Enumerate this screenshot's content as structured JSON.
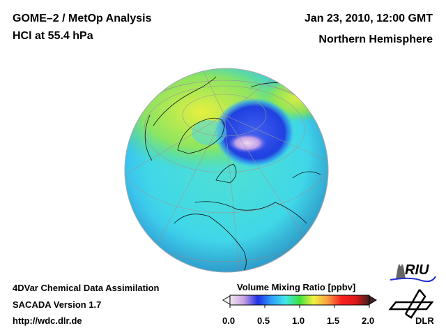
{
  "header": {
    "title_line1": "GOME–2 / MetOp Analysis",
    "title_line2": "HCl at 55.4 hPa",
    "date": "Jan 23, 2010, 12:00 GMT",
    "region": "Northern Hemisphere"
  },
  "footer": {
    "line1": "4DVar Chemical Data Assimilation",
    "line2": "SACADA Version 1.7",
    "line3": "http://wdc.dlr.de"
  },
  "colorbar": {
    "title": "Volume Mixing Ratio [ppbv]",
    "min": 0.0,
    "max": 2.0,
    "ticks": [
      "0.0",
      "0.5",
      "1.0",
      "1.5",
      "2.0"
    ],
    "stops": [
      "#f0e8f0",
      "#c8a0e0",
      "#2030e8",
      "#30a0f8",
      "#40e8e8",
      "#40e040",
      "#f0f040",
      "#f8a040",
      "#f82020",
      "#e01818",
      "#402020"
    ]
  },
  "logos": {
    "riu": "RIU",
    "dlr": "DLR"
  }
}
